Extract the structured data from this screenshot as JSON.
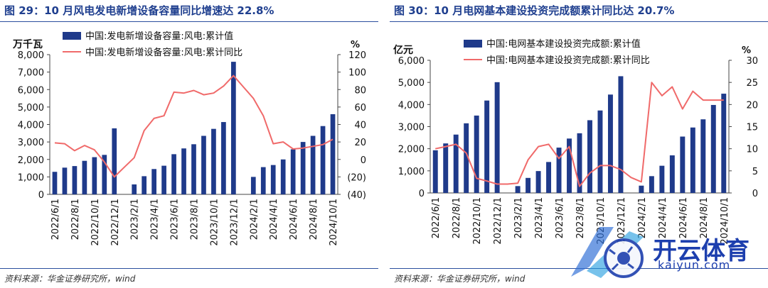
{
  "charts": [
    {
      "panel_title": "图 29：10 月风电发电新增设备容量同比增速达 22.8%",
      "source": "资料来源：华金证券研究所，wind",
      "chart_data": {
        "type": "bar+line",
        "left_unit": "万千瓦",
        "right_unit": "%",
        "left_range": [
          0,
          8000
        ],
        "left_ticks": [
          "0",
          "1,000",
          "2,000",
          "3,000",
          "4,000",
          "5,000",
          "6,000",
          "7,000",
          "8,000"
        ],
        "left_tick_values": [
          0,
          1000,
          2000,
          3000,
          4000,
          5000,
          6000,
          7000,
          8000
        ],
        "right_range": [
          -40,
          120
        ],
        "right_ticks": [
          "(40)",
          "(20)",
          "0",
          "20",
          "40",
          "60",
          "80",
          "100",
          "120"
        ],
        "right_tick_values": [
          -40,
          -20,
          0,
          20,
          40,
          60,
          80,
          100,
          120
        ],
        "x_labels": [
          "2022/6/1",
          "2022/8/1",
          "2022/10/1",
          "2022/12/1",
          "2023/2/1",
          "2023/4/1",
          "2023/6/1",
          "2023/8/1",
          "2023/10/1",
          "2023/12/1",
          "2024/2/1",
          "2024/4/1",
          "2024/6/1",
          "2024/8/1",
          "2024/10/1"
        ],
        "bar_series": {
          "name": "中国:发电新增设备容量:风电:累计值",
          "color": "#1f3a8a",
          "values": [
            1290,
            1530,
            1620,
            1920,
            2130,
            2260,
            3780,
            null,
            570,
            1040,
            1450,
            1640,
            2300,
            2630,
            2870,
            3350,
            3750,
            4140,
            7590,
            null,
            1000,
            1560,
            1680,
            2000,
            2580,
            3000,
            3350,
            3910,
            4590
          ]
        },
        "line_series": {
          "name": "中国:发电新增设备容量:风电:累计同比",
          "color": "#f06a6a",
          "values": [
            19,
            18,
            10,
            16,
            11,
            -3,
            -20,
            -9,
            2,
            33,
            47,
            50,
            77,
            76,
            79,
            74,
            76,
            84,
            96,
            83,
            70,
            50,
            18,
            20,
            12,
            13,
            15,
            17,
            23
          ]
        }
      }
    },
    {
      "panel_title": "图 30：10 月电网基本建设投资完成额累计同比达 20.7%",
      "source": "资料来源：华金证券研究所，wind",
      "chart_data": {
        "type": "bar+line",
        "left_unit": "亿元",
        "right_unit": "%",
        "left_range": [
          0,
          6000
        ],
        "left_ticks": [
          "0",
          "1,000",
          "2,000",
          "3,000",
          "4,000",
          "5,000",
          "6,000"
        ],
        "left_tick_values": [
          0,
          1000,
          2000,
          3000,
          4000,
          5000,
          6000
        ],
        "right_range": [
          0,
          30
        ],
        "right_ticks": [
          "0",
          "5",
          "10",
          "15",
          "20",
          "25",
          "30"
        ],
        "right_tick_values": [
          0,
          5,
          10,
          15,
          20,
          25,
          30
        ],
        "x_labels": [
          "2022/6/1",
          "2022/8/1",
          "2022/10/1",
          "2022/12/1",
          "2023/2/1",
          "2023/4/1",
          "2023/6/1",
          "2023/8/1",
          "2023/10/1",
          "2023/12/1",
          "2024/2/1",
          "2024/4/1",
          "2024/6/1",
          "2024/8/1",
          "2024/10/1"
        ],
        "bar_series": {
          "name": "中国:电网基本建设投资完成额:累计值",
          "color": "#1f3a8a",
          "values": [
            1930,
            2240,
            2640,
            3150,
            3500,
            4180,
            5010,
            null,
            310,
            680,
            990,
            1400,
            2050,
            2460,
            2700,
            3290,
            3730,
            4450,
            5280,
            null,
            330,
            760,
            1230,
            1700,
            2550,
            2960,
            3330,
            3980,
            4490
          ]
        },
        "line_series": {
          "name": "中国:电网基本建设投资完成额:累计同比",
          "color": "#f06a6a",
          "values": [
            10,
            10.5,
            11,
            9,
            3.3,
            2.7,
            2,
            2,
            2.2,
            7.5,
            10.5,
            11,
            7.8,
            10.5,
            1.5,
            4.5,
            6.2,
            6.2,
            5.3,
            3.5,
            2.5,
            25,
            22,
            24,
            19,
            23,
            21,
            21,
            21
          ]
        }
      }
    }
  ],
  "watermark": {
    "brand_text": "开云体育",
    "url_text": "kaiyun.com"
  }
}
